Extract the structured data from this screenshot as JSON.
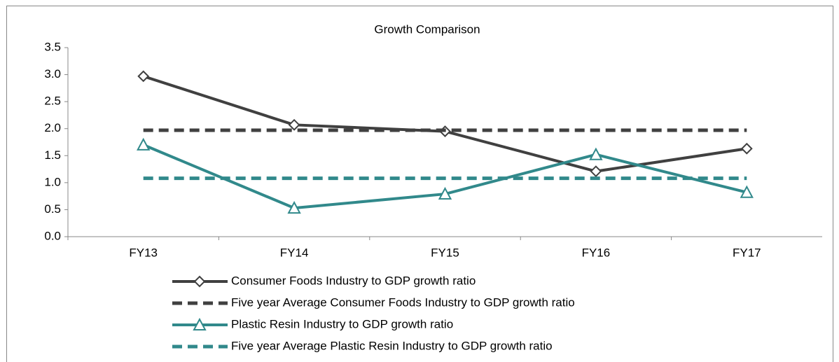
{
  "chart_data": {
    "type": "line",
    "title": "Growth Comparison",
    "categories": [
      "FY13",
      "FY14",
      "FY15",
      "FY16",
      "FY17"
    ],
    "series": [
      {
        "name": "Consumer Foods Industry to GDP growth ratio",
        "color": "#404040",
        "marker": "diamond",
        "dashed": false,
        "values": [
          2.97,
          2.07,
          1.95,
          1.21,
          1.63
        ]
      },
      {
        "name": "Five year Average Consumer Foods Industry to GDP growth ratio",
        "color": "#404040",
        "marker": "none",
        "dashed": true,
        "values": [
          1.97,
          1.97,
          1.97,
          1.97,
          1.97
        ]
      },
      {
        "name": "Plastic Resin Industry to GDP growth ratio",
        "color": "#31898b",
        "marker": "triangle",
        "dashed": false,
        "values": [
          1.7,
          0.53,
          0.79,
          1.52,
          0.82
        ]
      },
      {
        "name": "Five year Average Plastic Resin Industry to GDP growth ratio",
        "color": "#31898b",
        "marker": "none",
        "dashed": true,
        "values": [
          1.08,
          1.08,
          1.08,
          1.08,
          1.08
        ]
      }
    ],
    "ylim": [
      0,
      3.5
    ],
    "yticks": [
      {
        "value": 0,
        "label": "0.0"
      },
      0.5,
      {
        "value": 1,
        "label": "1.0"
      },
      1.5,
      {
        "value": 2,
        "label": "2.0"
      },
      2.5,
      {
        "value": 3,
        "label": "3.0"
      },
      3.5
    ],
    "grid": false
  }
}
